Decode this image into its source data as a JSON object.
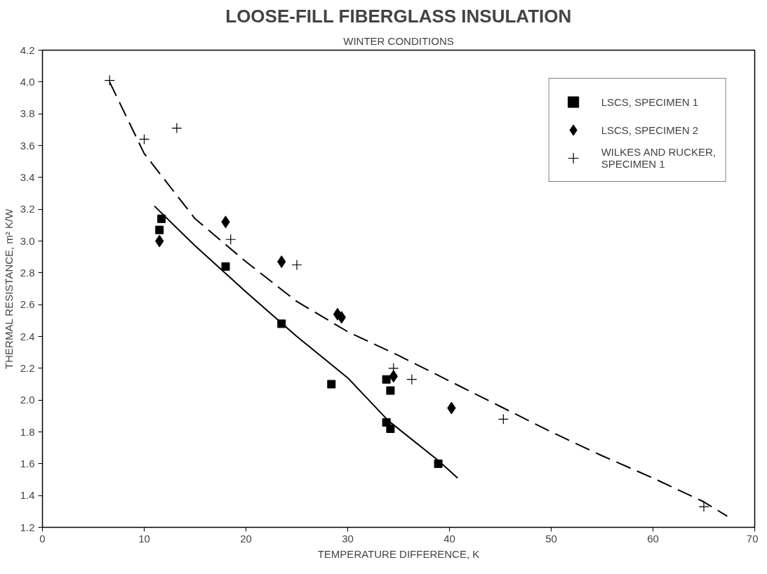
{
  "chart_data": {
    "type": "scatter",
    "title": "LOOSE-FILL FIBERGLASS INSULATION",
    "subtitle": "WINTER CONDITIONS",
    "xlabel": "TEMPERATURE DIFFERENCE, K",
    "ylabel": "THERMAL RESISTANCE, m² K/W",
    "xlim": [
      0,
      70
    ],
    "xticks": [
      0,
      10,
      20,
      30,
      40,
      50,
      60,
      70
    ],
    "ylim": [
      1.2,
      4.2
    ],
    "yticks": [
      {
        "value": 1.2,
        "label": "1.2"
      },
      {
        "value": 1.4,
        "label": "1.4"
      },
      {
        "value": 1.6,
        "label": "1.6"
      },
      {
        "value": 1.8,
        "label": "1.8"
      },
      {
        "value": 2.0,
        "label": "2.0"
      },
      {
        "value": 2.2,
        "label": "2.2"
      },
      {
        "value": 2.4,
        "label": "2.4"
      },
      {
        "value": 2.6,
        "label": "2.6"
      },
      {
        "value": 2.8,
        "label": "2.8"
      },
      {
        "value": 3.0,
        "label": "3.0"
      },
      {
        "value": 3.2,
        "label": "3.2"
      },
      {
        "value": 3.4,
        "label": "3.4"
      },
      {
        "value": 3.6,
        "label": "3.6"
      },
      {
        "value": 3.8,
        "label": "3.8"
      },
      {
        "value": 4.0,
        "label": "4.0"
      },
      {
        "value": 4.2,
        "label": "4.2"
      }
    ],
    "grid": false,
    "legend": "top right",
    "series": [
      {
        "name": "LSCS, SPECIMEN 1",
        "marker": "square",
        "color": "#000000",
        "x": [
          11.7,
          11.5,
          18,
          23.5,
          28.4,
          33.8,
          34.2,
          33.8,
          34.2,
          38.9
        ],
        "values": [
          3.14,
          3.07,
          2.84,
          2.48,
          2.1,
          2.13,
          2.06,
          1.86,
          1.82,
          1.6
        ]
      },
      {
        "name": "LSCS, SPECIMEN 2",
        "marker": "diamond",
        "color": "#000000",
        "x": [
          11.5,
          18,
          23.5,
          29,
          29.4,
          34.5,
          40.2
        ],
        "values": [
          3.0,
          3.12,
          2.87,
          2.54,
          2.52,
          2.15,
          1.95
        ]
      },
      {
        "name": "WILKES AND RUCKER, SPECIMEN 1",
        "marker": "cross",
        "color": "#000000",
        "x": [
          6.6,
          10,
          13.2,
          18.5,
          25,
          34.5,
          36.3,
          45.3,
          65
        ],
        "values": [
          4.01,
          3.64,
          3.71,
          3.01,
          2.85,
          2.2,
          2.13,
          1.88,
          1.33
        ]
      },
      {
        "type": "line",
        "line_style": "solid",
        "color": "#000000",
        "x": [
          11,
          15,
          20,
          25,
          30,
          34,
          38.9,
          40.8
        ],
        "values": [
          3.22,
          2.97,
          2.68,
          2.4,
          2.14,
          1.87,
          1.62,
          1.51
        ]
      },
      {
        "type": "line",
        "line_style": "dashed",
        "color": "#000000",
        "x": [
          6.6,
          10,
          15,
          20,
          25,
          30,
          35,
          40,
          45,
          50,
          55,
          60,
          65,
          67.3
        ],
        "values": [
          4.0,
          3.55,
          3.14,
          2.87,
          2.62,
          2.43,
          2.28,
          2.12,
          1.96,
          1.8,
          1.65,
          1.51,
          1.36,
          1.27
        ]
      }
    ]
  }
}
